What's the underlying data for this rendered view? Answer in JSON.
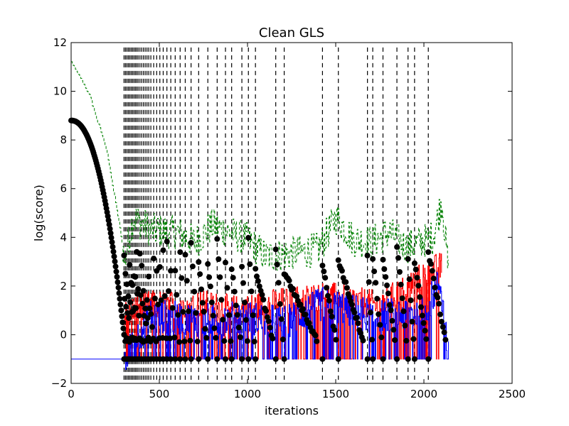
{
  "chart_data": {
    "type": "line",
    "title": "Clean GLS",
    "xlabel": "iterations",
    "ylabel": "log(score)",
    "xlim": [
      0,
      2500
    ],
    "ylim": [
      -2,
      12
    ],
    "xticks": [
      0,
      500,
      1000,
      1500,
      2000,
      2500
    ],
    "yticks": [
      -2,
      0,
      2,
      4,
      6,
      8,
      10,
      12
    ],
    "grid": false,
    "legend": "none",
    "colors": {
      "blue": "#0000ff",
      "red": "#ff0000",
      "green": "#008000",
      "markers": "#000000",
      "restart_lines": "#000000"
    },
    "restart_iterations": [
      300,
      308,
      316,
      324,
      332,
      340,
      348,
      356,
      364,
      372,
      380,
      390,
      400,
      410,
      420,
      430,
      440,
      452,
      468,
      485,
      503,
      522,
      543,
      565,
      590,
      618,
      647,
      680,
      723,
      775,
      828,
      875,
      910,
      968,
      1005,
      1045,
      1160,
      1208,
      1425,
      1515,
      1680,
      1710,
      1768,
      1847,
      1910,
      1947,
      2025
    ],
    "series": [
      {
        "key": "blue",
        "style": "solid",
        "description_points": [
          [
            0,
            -1
          ],
          [
            290,
            -1
          ],
          [
            300,
            -1
          ],
          [
            450,
            0.8
          ],
          [
            720,
            0.6
          ],
          [
            1000,
            0.7
          ],
          [
            1210,
            0.5
          ],
          [
            1430,
            1.3
          ],
          [
            1700,
            0.8
          ],
          [
            2000,
            0.9
          ],
          [
            2090,
            2.2
          ],
          [
            2140,
            -1
          ]
        ]
      },
      {
        "key": "red",
        "style": "solid",
        "description_points": [
          [
            300,
            0.8
          ],
          [
            400,
            1.2
          ],
          [
            700,
            1.3
          ],
          [
            950,
            1.0
          ],
          [
            1150,
            1.3
          ],
          [
            1450,
            1.6
          ],
          [
            1750,
            1.2
          ],
          [
            2050,
            2.7
          ],
          [
            2100,
            2.8
          ]
        ]
      },
      {
        "key": "green",
        "style": "dashed",
        "description_points": [
          [
            0,
            11.2
          ],
          [
            100,
            9.9
          ],
          [
            200,
            7.6
          ],
          [
            280,
            4.2
          ],
          [
            300,
            3.0
          ],
          [
            350,
            4.8
          ],
          [
            450,
            4.3
          ],
          [
            600,
            4.2
          ],
          [
            700,
            3.8
          ],
          [
            800,
            4.5
          ],
          [
            1000,
            3.9
          ],
          [
            1100,
            3.2
          ],
          [
            1400,
            3.5
          ],
          [
            1500,
            4.8
          ],
          [
            1600,
            3.9
          ],
          [
            1700,
            3.8
          ],
          [
            1800,
            4.2
          ],
          [
            1900,
            3.6
          ],
          [
            2050,
            4.0
          ],
          [
            2100,
            5.5
          ],
          [
            2140,
            2.4
          ]
        ]
      },
      {
        "key": "markers",
        "style": "points",
        "description": "black circle markers tracing the current score, descending from 8.8 at iteration 0 to about 0 near iteration 300, then restarting after each dashed vertical line"
      }
    ]
  }
}
